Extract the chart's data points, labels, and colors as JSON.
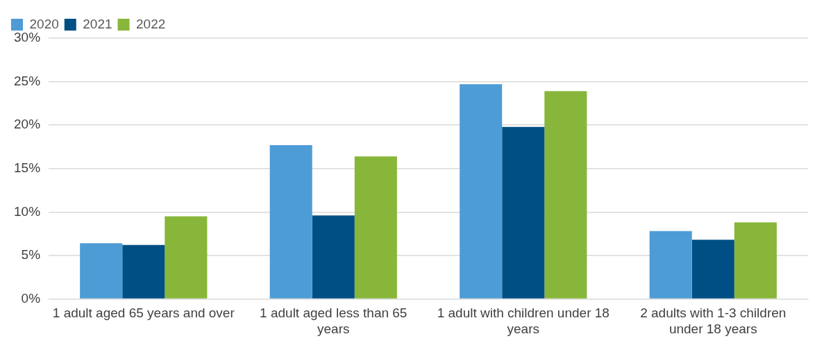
{
  "chart_data": {
    "type": "bar",
    "categories": [
      "1 adult aged 65 years and over",
      "1 adult aged less than 65 years",
      "1 adult with children under 18 years",
      "2 adults with 1-3 children under 18 years"
    ],
    "series": [
      {
        "name": "2020",
        "color": "#4e9cd6",
        "values": [
          6.4,
          17.7,
          24.7,
          7.8
        ]
      },
      {
        "name": "2021",
        "color": "#004f84",
        "values": [
          6.2,
          9.6,
          19.8,
          6.8
        ]
      },
      {
        "name": "2022",
        "color": "#88b63a",
        "values": [
          9.5,
          16.4,
          23.9,
          8.8
        ]
      }
    ],
    "ylim": [
      0,
      30
    ],
    "yticks": [
      {
        "value": 0,
        "label": "0%"
      },
      {
        "value": 5,
        "label": "5%"
      },
      {
        "value": 10,
        "label": "10%"
      },
      {
        "value": 15,
        "label": "15%"
      },
      {
        "value": 20,
        "label": "20%"
      },
      {
        "value": 25,
        "label": "25%"
      },
      {
        "value": 30,
        "label": "30%"
      }
    ],
    "grid": "y",
    "legend": "top left"
  }
}
